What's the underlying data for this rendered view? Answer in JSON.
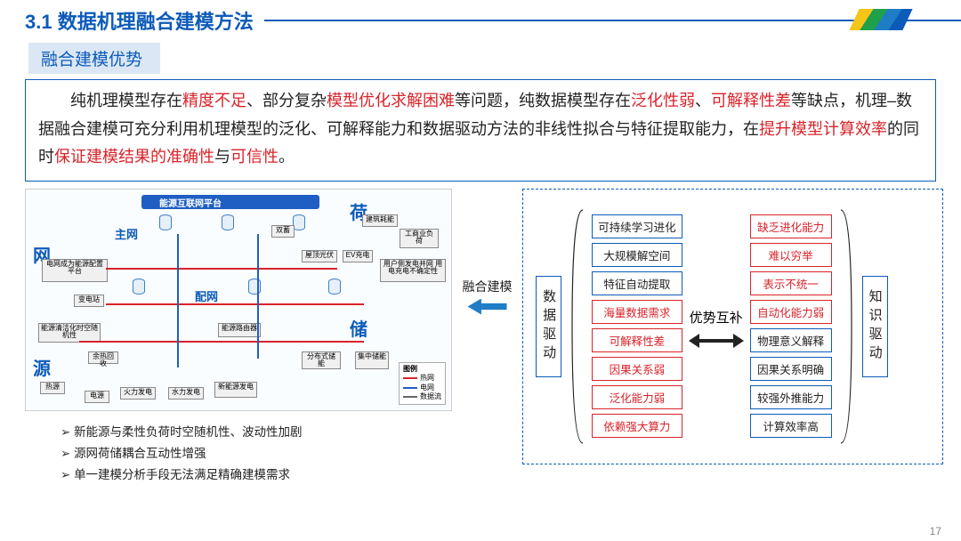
{
  "header": {
    "section_no": "3.1",
    "title": "数据机理融合建模方法"
  },
  "sub_header": "融合建模优势",
  "description": {
    "parts": [
      {
        "t": "纯机理模型存在",
        "c": "k"
      },
      {
        "t": "精度不足",
        "c": "r"
      },
      {
        "t": "、部分复杂",
        "c": "k"
      },
      {
        "t": "模型优化求解困难",
        "c": "r"
      },
      {
        "t": "等问题，纯数据模型存在",
        "c": "k"
      },
      {
        "t": "泛化性弱",
        "c": "r"
      },
      {
        "t": "、",
        "c": "k"
      },
      {
        "t": "可解释性差",
        "c": "r"
      },
      {
        "t": "等缺点，机理–数据融合建模可充分利用机理模型的泛化、可解释能力和数据驱动方法的非线性拟合与特征提取能力，在",
        "c": "k"
      },
      {
        "t": "提升模型计算效率",
        "c": "r"
      },
      {
        "t": "的同时",
        "c": "k"
      },
      {
        "t": "保证建模结果的准确性",
        "c": "r"
      },
      {
        "t": "与",
        "c": "k"
      },
      {
        "t": "可信性",
        "c": "r"
      },
      {
        "t": "。",
        "c": "k"
      }
    ]
  },
  "net_diagram": {
    "top_bar": "能源互联网平台",
    "corner_labels": [
      "网",
      "荷",
      "源",
      "储"
    ],
    "sub_labels": [
      "主网",
      "配网"
    ],
    "boxes": [
      "电网成为能源配置平台",
      "变电站",
      "能源清洁化时空随机性",
      "余热回收",
      "热源",
      "电源",
      "火力发电",
      "水力发电",
      "新能源发电",
      "双蓄",
      "屋顶光伏",
      "EV充电",
      "建筑耗能",
      "工商业负荷",
      "用户侧发电并网 用电充电不确定性",
      "能源路由器",
      "分布式储能",
      "集中储能"
    ],
    "legend_title": "图例",
    "legend_items": [
      {
        "label": "热网",
        "color": "#d8232a"
      },
      {
        "label": "电网",
        "color": "#1f5fc4"
      },
      {
        "label": "数据流",
        "color": "#666666"
      }
    ]
  },
  "bullets": [
    "新能源与柔性负荷时空随机性、波动性加剧",
    "源网荷储耦合互动性增强",
    "单一建模分析手段无法满足精确建模需求"
  ],
  "mid_label": "融合建模",
  "right_panel": {
    "left_v": "数据驱动",
    "right_v": "知识驱动",
    "center": "优势互补",
    "left_tags": [
      {
        "t": "可持续学习进化",
        "c": "blue"
      },
      {
        "t": "大规模解空间",
        "c": "blue"
      },
      {
        "t": "特征自动提取",
        "c": "blue"
      },
      {
        "t": "海量数据需求",
        "c": "red"
      },
      {
        "t": "可解释性差",
        "c": "red"
      },
      {
        "t": "因果关系弱",
        "c": "red"
      },
      {
        "t": "泛化能力弱",
        "c": "red"
      },
      {
        "t": "依赖强大算力",
        "c": "red"
      }
    ],
    "right_tags": [
      {
        "t": "缺乏进化能力",
        "c": "red"
      },
      {
        "t": "难以穷举",
        "c": "red"
      },
      {
        "t": "表示不统一",
        "c": "red"
      },
      {
        "t": "自动化能力弱",
        "c": "red"
      },
      {
        "t": "物理意义解释",
        "c": "blue"
      },
      {
        "t": "因果关系明确",
        "c": "blue"
      },
      {
        "t": "较强外推能力",
        "c": "blue"
      },
      {
        "t": "计算效率高",
        "c": "blue"
      }
    ]
  },
  "colors": {
    "primary_blue": "#0d5bb9",
    "highlight_red": "#d8232a",
    "arrow_blue": "#1f7dc6"
  },
  "page_number": "17"
}
